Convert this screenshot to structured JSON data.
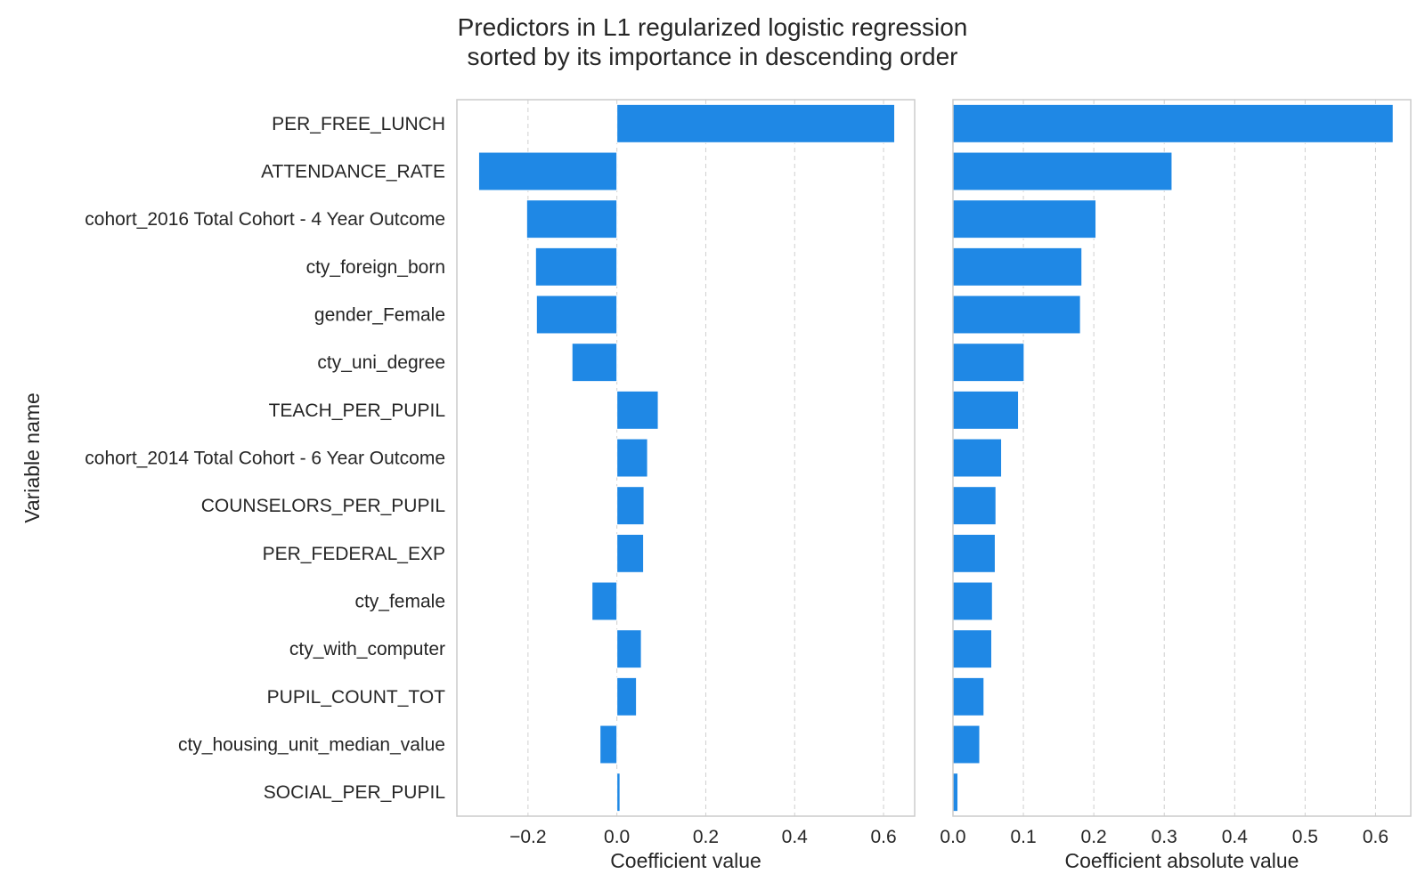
{
  "title_line1": "Predictors in L1 regularized logistic regression",
  "title_line2": "sorted by its importance in descending order",
  "bar_color": "#1f88e5",
  "chart_data": [
    {
      "type": "bar",
      "orientation": "horizontal",
      "ylabel": "Variable name",
      "xlabel": "Coefficient value",
      "xlim": [
        -0.36,
        0.67
      ],
      "xticks": [
        -0.2,
        0.0,
        0.2,
        0.4,
        0.6
      ],
      "xtick_labels": [
        "−0.2",
        "0.0",
        "0.2",
        "0.4",
        "0.6"
      ],
      "grid": "x-dashed",
      "categories": [
        "PER_FREE_LUNCH",
        "ATTENDANCE_RATE",
        "cohort_2016 Total Cohort - 4 Year Outcome",
        "cty_foreign_born",
        "gender_Female",
        "cty_uni_degree",
        "TEACH_PER_PUPIL",
        "cohort_2014 Total Cohort - 6 Year Outcome",
        "COUNSELORS_PER_PUPIL",
        "PER_FEDERAL_EXP",
        "cty_female",
        "cty_with_computer",
        "PUPIL_COUNT_TOT",
        "cty_housing_unit_median_value",
        "SOCIAL_PER_PUPIL"
      ],
      "values": [
        0.625,
        -0.311,
        -0.203,
        -0.183,
        -0.181,
        -0.101,
        0.093,
        0.069,
        0.061,
        0.06,
        -0.056,
        0.055,
        0.044,
        -0.038,
        0.007
      ]
    },
    {
      "type": "bar",
      "orientation": "horizontal",
      "xlabel": "Coefficient absolute value",
      "xlim": [
        0.0,
        0.65
      ],
      "xticks": [
        0.0,
        0.1,
        0.2,
        0.3,
        0.4,
        0.5,
        0.6
      ],
      "xtick_labels": [
        "0.0",
        "0.1",
        "0.2",
        "0.3",
        "0.4",
        "0.5",
        "0.6"
      ],
      "grid": "x-dashed",
      "categories": [
        "PER_FREE_LUNCH",
        "ATTENDANCE_RATE",
        "cohort_2016 Total Cohort - 4 Year Outcome",
        "cty_foreign_born",
        "gender_Female",
        "cty_uni_degree",
        "TEACH_PER_PUPIL",
        "cohort_2014 Total Cohort - 6 Year Outcome",
        "COUNSELORS_PER_PUPIL",
        "PER_FEDERAL_EXP",
        "cty_female",
        "cty_with_computer",
        "PUPIL_COUNT_TOT",
        "cty_housing_unit_median_value",
        "SOCIAL_PER_PUPIL"
      ],
      "values": [
        0.625,
        0.311,
        0.203,
        0.183,
        0.181,
        0.101,
        0.093,
        0.069,
        0.061,
        0.06,
        0.056,
        0.055,
        0.044,
        0.038,
        0.007
      ]
    }
  ]
}
